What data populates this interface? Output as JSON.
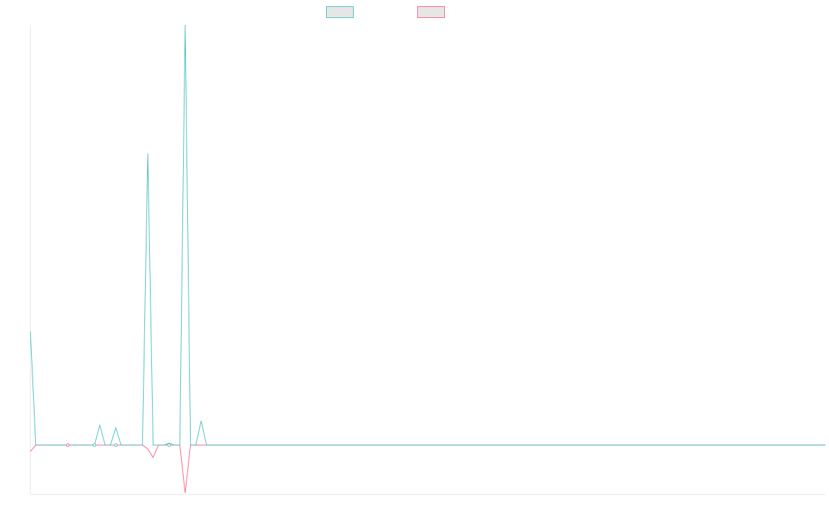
{
  "colors": {
    "series_a": "#4bc0c0",
    "series_b": "#ff6384",
    "legend_fill": "#e6e6e6",
    "axis": "#e5e5e5"
  },
  "legend": {
    "placement": "top-center",
    "entries": [
      "",
      ""
    ]
  },
  "chart_data": {
    "type": "line",
    "title": "",
    "xlabel": "",
    "ylabel": "",
    "grid": false,
    "point_count": 150,
    "ylim": [
      -1000,
      8500
    ],
    "series": [
      {
        "values": [
          2300,
          0,
          0,
          0,
          0,
          0,
          0,
          0,
          0,
          0,
          0,
          0,
          0,
          0,
          0,
          0,
          0,
          0,
          0,
          0,
          0,
          0,
          0,
          0,
          0,
          0,
          0,
          0,
          0,
          0,
          0,
          0,
          0,
          0,
          0,
          0,
          0,
          0,
          0,
          0,
          0,
          0,
          0,
          0,
          0,
          0,
          0,
          0,
          0,
          0,
          0,
          0,
          0,
          0,
          0,
          0,
          0,
          0,
          0,
          0,
          0,
          0,
          0,
          0,
          0,
          0,
          0,
          0,
          0,
          0,
          0,
          0,
          0,
          0,
          0,
          0,
          0,
          0,
          0,
          0,
          0,
          0,
          0,
          0,
          0,
          0,
          0,
          0,
          0,
          0,
          0,
          0,
          0,
          0,
          0,
          0,
          0,
          0,
          0,
          0,
          0,
          0,
          0,
          0,
          0,
          0,
          0,
          0,
          0,
          0,
          0,
          0,
          0,
          0,
          0,
          0,
          0,
          0,
          0,
          0,
          0,
          0,
          0,
          0,
          0,
          0,
          0,
          0,
          0,
          0,
          0,
          0,
          0,
          0,
          0,
          0,
          0,
          0,
          0,
          0,
          0,
          0,
          0,
          0,
          0,
          0,
          0,
          0,
          0,
          0
        ]
      },
      {
        "values": [
          -130,
          0,
          0,
          0,
          0,
          0,
          0,
          0,
          0,
          0,
          0,
          0,
          0,
          0,
          0,
          0,
          0,
          0,
          0,
          0,
          0,
          0,
          0,
          0,
          0,
          0,
          0,
          0,
          0,
          0,
          0,
          0,
          0,
          0,
          0,
          0,
          0,
          0,
          0,
          0,
          0,
          0,
          0,
          0,
          0,
          0,
          0,
          0,
          0,
          0,
          0,
          0,
          0,
          0,
          0,
          0,
          0,
          0,
          0,
          0,
          0,
          0,
          0,
          0,
          0,
          0,
          0,
          0,
          0,
          0,
          0,
          0,
          0,
          0,
          0,
          0,
          0,
          0,
          0,
          0,
          0,
          0,
          0,
          0,
          0,
          0,
          0,
          0,
          0,
          0,
          0,
          0,
          0,
          0,
          0,
          0,
          0,
          0,
          0,
          0,
          0,
          0,
          0,
          0,
          0,
          0,
          0,
          0,
          0,
          0,
          0,
          0,
          0,
          0,
          0,
          0,
          0,
          0,
          0,
          0,
          0,
          0,
          0,
          0,
          0,
          0,
          0,
          0,
          0,
          0,
          0,
          0,
          0,
          0,
          0,
          0,
          0,
          0,
          0,
          0,
          0,
          0,
          0,
          0,
          0,
          0,
          0,
          0,
          0,
          0
        ]
      }
    ],
    "spikes": {
      "series_a": [
        [
          13,
          400
        ],
        [
          16,
          350
        ],
        [
          22,
          5900
        ],
        [
          29,
          8500
        ],
        [
          32,
          490
        ],
        [
          26,
          40
        ]
      ],
      "series_b": [
        [
          22,
          -80
        ],
        [
          23,
          -250
        ],
        [
          29,
          -970
        ],
        [
          7,
          0
        ],
        [
          12,
          0
        ],
        [
          26,
          0
        ]
      ]
    }
  }
}
